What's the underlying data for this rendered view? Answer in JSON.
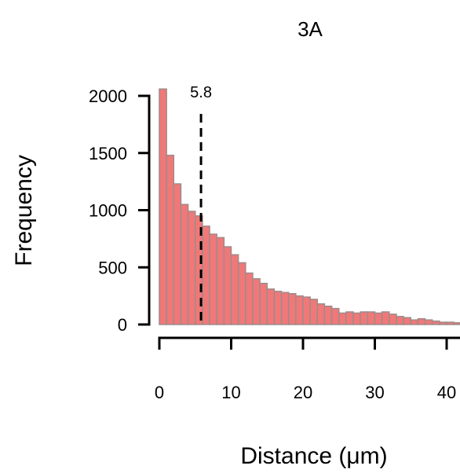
{
  "chart_data": {
    "type": "bar",
    "title": "3A",
    "xlabel": "Distance (μm)",
    "ylabel": "Frequency",
    "bin_width": 1,
    "bin_start": 0,
    "values": [
      2060,
      1480,
      1230,
      1050,
      990,
      950,
      860,
      790,
      760,
      680,
      610,
      540,
      450,
      400,
      360,
      310,
      290,
      280,
      270,
      250,
      240,
      220,
      180,
      160,
      140,
      100,
      110,
      100,
      110,
      110,
      100,
      110,
      90,
      70,
      60,
      40,
      50,
      40,
      30,
      20,
      20,
      15
    ],
    "xlim": [
      0,
      42
    ],
    "ylim": [
      0,
      2100
    ],
    "x_ticks": [
      0,
      10,
      20,
      30,
      40
    ],
    "y_ticks": [
      0,
      500,
      1000,
      1500,
      2000
    ],
    "reference_line": {
      "x": 5.8,
      "label": "5.8",
      "style": "dashed"
    },
    "colors": {
      "bar_fill": "#f07878",
      "bar_edge": "#a08a8a"
    },
    "grid": false
  }
}
